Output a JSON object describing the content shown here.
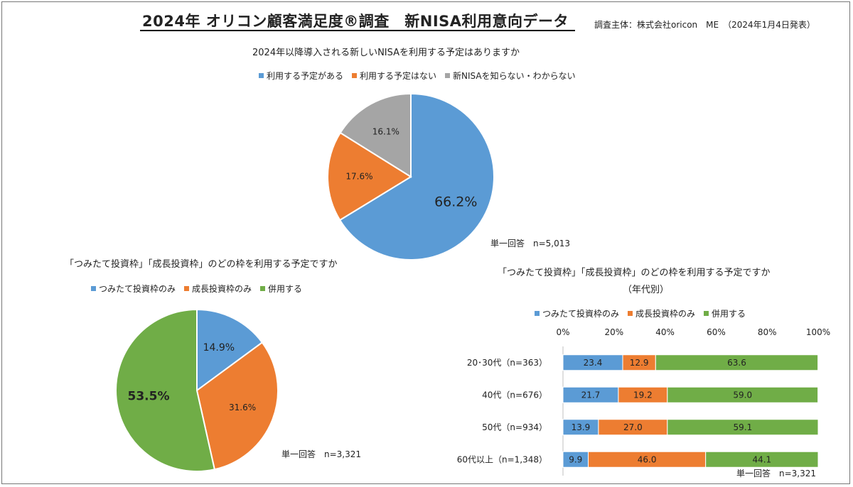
{
  "header": {
    "title": "2024年 オリコン顧客満足度®調査　新NISA利用意向データ",
    "source": "調査主体：株式会社oricon　ME　（2024年1月4日発表）"
  },
  "colors": {
    "blue": "#5b9bd5",
    "orange": "#ed7d31",
    "gray": "#a5a5a5",
    "green": "#70ad47"
  },
  "chart_data": [
    {
      "type": "pie",
      "title": "2024年以降導入される新しいNISAを利用する予定はありますか",
      "note": "単一回答　n=5,013",
      "slices": [
        {
          "label": "利用する予定がある",
          "value": 66.2,
          "display": "66.2%",
          "color": "#5b9bd5"
        },
        {
          "label": "利用する予定はない",
          "value": 17.6,
          "display": "17.6%",
          "color": "#ed7d31"
        },
        {
          "label": "新NISAを知らない・わからない",
          "value": 16.1,
          "display": "16.1%",
          "color": "#a5a5a5"
        }
      ]
    },
    {
      "type": "pie",
      "title": "「つみたて投資枠」「成長投資枠」のどの枠を利用する予定ですか",
      "note": "単一回答　n=3,321",
      "slices": [
        {
          "label": "つみたて投資枠のみ",
          "value": 14.9,
          "display": "14.9%",
          "color": "#5b9bd5"
        },
        {
          "label": "成長投資枠のみ",
          "value": 31.6,
          "display": "31.6%",
          "color": "#ed7d31"
        },
        {
          "label": "併用する",
          "value": 53.5,
          "display": "53.5%",
          "color": "#70ad47"
        }
      ]
    },
    {
      "type": "bar",
      "orientation": "horizontal",
      "stacked": true,
      "title": "「つみたて投資枠」「成長投資枠」のどの枠を利用する予定ですか",
      "subtitle": "（年代別）",
      "note": "単一回答　n=3,321",
      "xlim": [
        0,
        100
      ],
      "ticks": [
        "0%",
        "20%",
        "40%",
        "60%",
        "80%",
        "100%"
      ],
      "categories": [
        "20･30代（n=363）",
        "40代（n=676）",
        "50代（n=934）",
        "60代以上（n=1,348）"
      ],
      "series": [
        {
          "name": "つみたて投資枠のみ",
          "color": "#5b9bd5",
          "values": [
            23.4,
            21.7,
            13.9,
            9.9
          ]
        },
        {
          "name": "成長投資枠のみ",
          "color": "#ed7d31",
          "values": [
            12.9,
            19.2,
            27.0,
            46.0
          ]
        },
        {
          "name": "併用する",
          "color": "#70ad47",
          "values": [
            63.6,
            59.0,
            59.1,
            44.1
          ]
        }
      ]
    }
  ]
}
